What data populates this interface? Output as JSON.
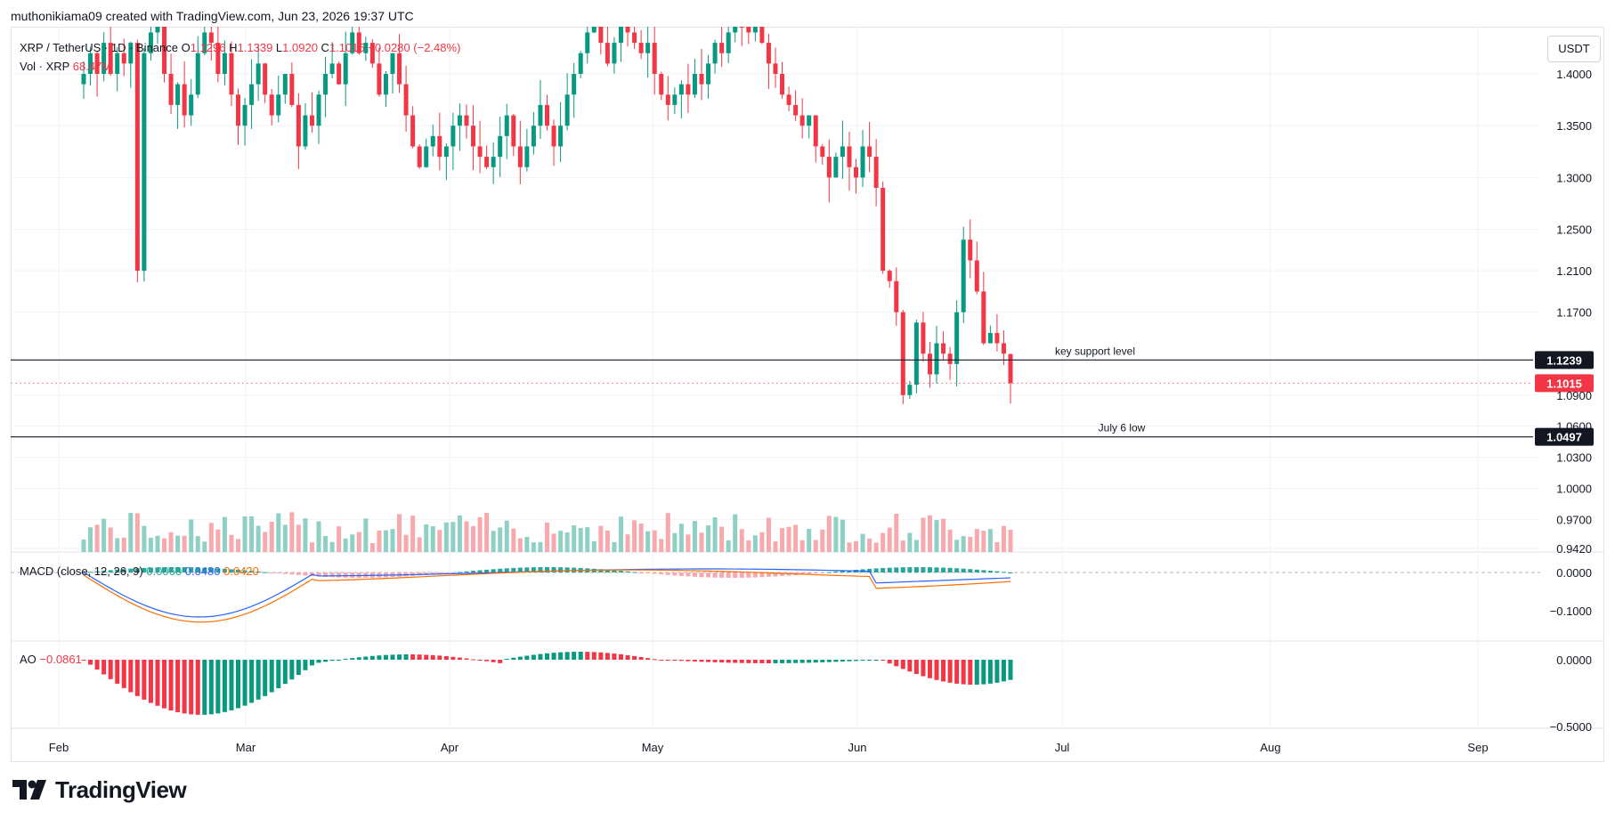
{
  "header": {
    "creator": "muthonikiama09 created with TradingView.com, Jun 23, 2026 19:37 UTC"
  },
  "legend": {
    "symbol": "XRP / TetherUS · 1D · Binance",
    "o_label": "O",
    "o_value": "1.1296",
    "h_label": "H",
    "h_value": "1.1339",
    "l_label": "L",
    "l_value": "1.0920",
    "c_label": "C",
    "c_value": "1.1015",
    "change": "−0.0280 (−2.48%)",
    "vol_label": "Vol · XRP",
    "vol_value": "68.47M",
    "macd_label": "MACD (close, 12, 26, 9)",
    "macd_hist": "0.0060",
    "macd_line": "0.0480",
    "macd_signal": "0.0420",
    "ao_label": "AO",
    "ao_value": "−0.0861"
  },
  "unit": "USDT",
  "brand": "TradingView",
  "colors": {
    "up": "#089981",
    "down": "#f23645",
    "macd": "#2962ff",
    "signal": "#ff6d00",
    "up_vol": "#8fd0c4",
    "down_vol": "#f7a9ae"
  },
  "chart_data": {
    "type": "candlestick",
    "x_axis": {
      "labels": [
        "Feb",
        "Mar",
        "Apr",
        "May",
        "Jun",
        "Jul",
        "Aug",
        "Sep"
      ]
    },
    "price_axis": {
      "ticks": [
        "1.4000",
        "1.3500",
        "1.3000",
        "1.2500",
        "1.2100",
        "1.1700",
        "1.0900",
        "1.0600",
        "1.0300",
        "1.0000",
        "0.9700",
        "0.9420"
      ]
    },
    "macd_axis": {
      "ticks": [
        "0.0000",
        "−0.1000"
      ]
    },
    "ao_axis": {
      "ticks": [
        "0.0000",
        "−0.5000"
      ]
    },
    "levels": [
      {
        "price": 1.1239,
        "label": "1.1239",
        "annotation": "key support level"
      },
      {
        "price": 1.0497,
        "label": "1.0497",
        "annotation": "July 6 low"
      }
    ],
    "current_price": {
      "price": 1.1015,
      "label": "1.1015"
    },
    "ohlc_last": {
      "open": 1.1296,
      "high": 1.1339,
      "low": 1.092,
      "close": 1.1015
    },
    "candles_summary": "daily candles late Jan – Jun 23, 2026; closes: Feb ~1.20-1.40, Mar 1.32-1.38, Apr 1.30-1.43, May 1.35-1.43, Jun drop to ~1.08-1.24",
    "closes": [
      1.4,
      1.42,
      1.4,
      1.43,
      1.4,
      1.42,
      1.41,
      1.43,
      1.21,
      1.42,
      1.44,
      1.45,
      1.4,
      1.37,
      1.39,
      1.36,
      1.38,
      1.42,
      1.44,
      1.43,
      1.4,
      1.42,
      1.38,
      1.35,
      1.37,
      1.39,
      1.41,
      1.38,
      1.36,
      1.38,
      1.4,
      1.37,
      1.33,
      1.36,
      1.35,
      1.38,
      1.4,
      1.41,
      1.39,
      1.42,
      1.44,
      1.42,
      1.43,
      1.41,
      1.38,
      1.4,
      1.42,
      1.39,
      1.36,
      1.33,
      1.31,
      1.33,
      1.34,
      1.32,
      1.33,
      1.35,
      1.36,
      1.35,
      1.33,
      1.32,
      1.31,
      1.32,
      1.34,
      1.36,
      1.33,
      1.31,
      1.33,
      1.35,
      1.37,
      1.35,
      1.33,
      1.35,
      1.38,
      1.4,
      1.42,
      1.44,
      1.45,
      1.43,
      1.41,
      1.43,
      1.45,
      1.44,
      1.43,
      1.42,
      1.43,
      1.4,
      1.38,
      1.37,
      1.38,
      1.39,
      1.38,
      1.4,
      1.39,
      1.41,
      1.43,
      1.42,
      1.44,
      1.46,
      1.45,
      1.44,
      1.45,
      1.43,
      1.41,
      1.4,
      1.38,
      1.37,
      1.36,
      1.35,
      1.36,
      1.33,
      1.32,
      1.3,
      1.32,
      1.33,
      1.31,
      1.3,
      1.33,
      1.32,
      1.29,
      1.21,
      1.2,
      1.17,
      1.09,
      1.1,
      1.16,
      1.13,
      1.11,
      1.14,
      1.13,
      1.12,
      1.17,
      1.24,
      1.22,
      1.19,
      1.14,
      1.15,
      1.14,
      1.13,
      1.1
    ]
  }
}
